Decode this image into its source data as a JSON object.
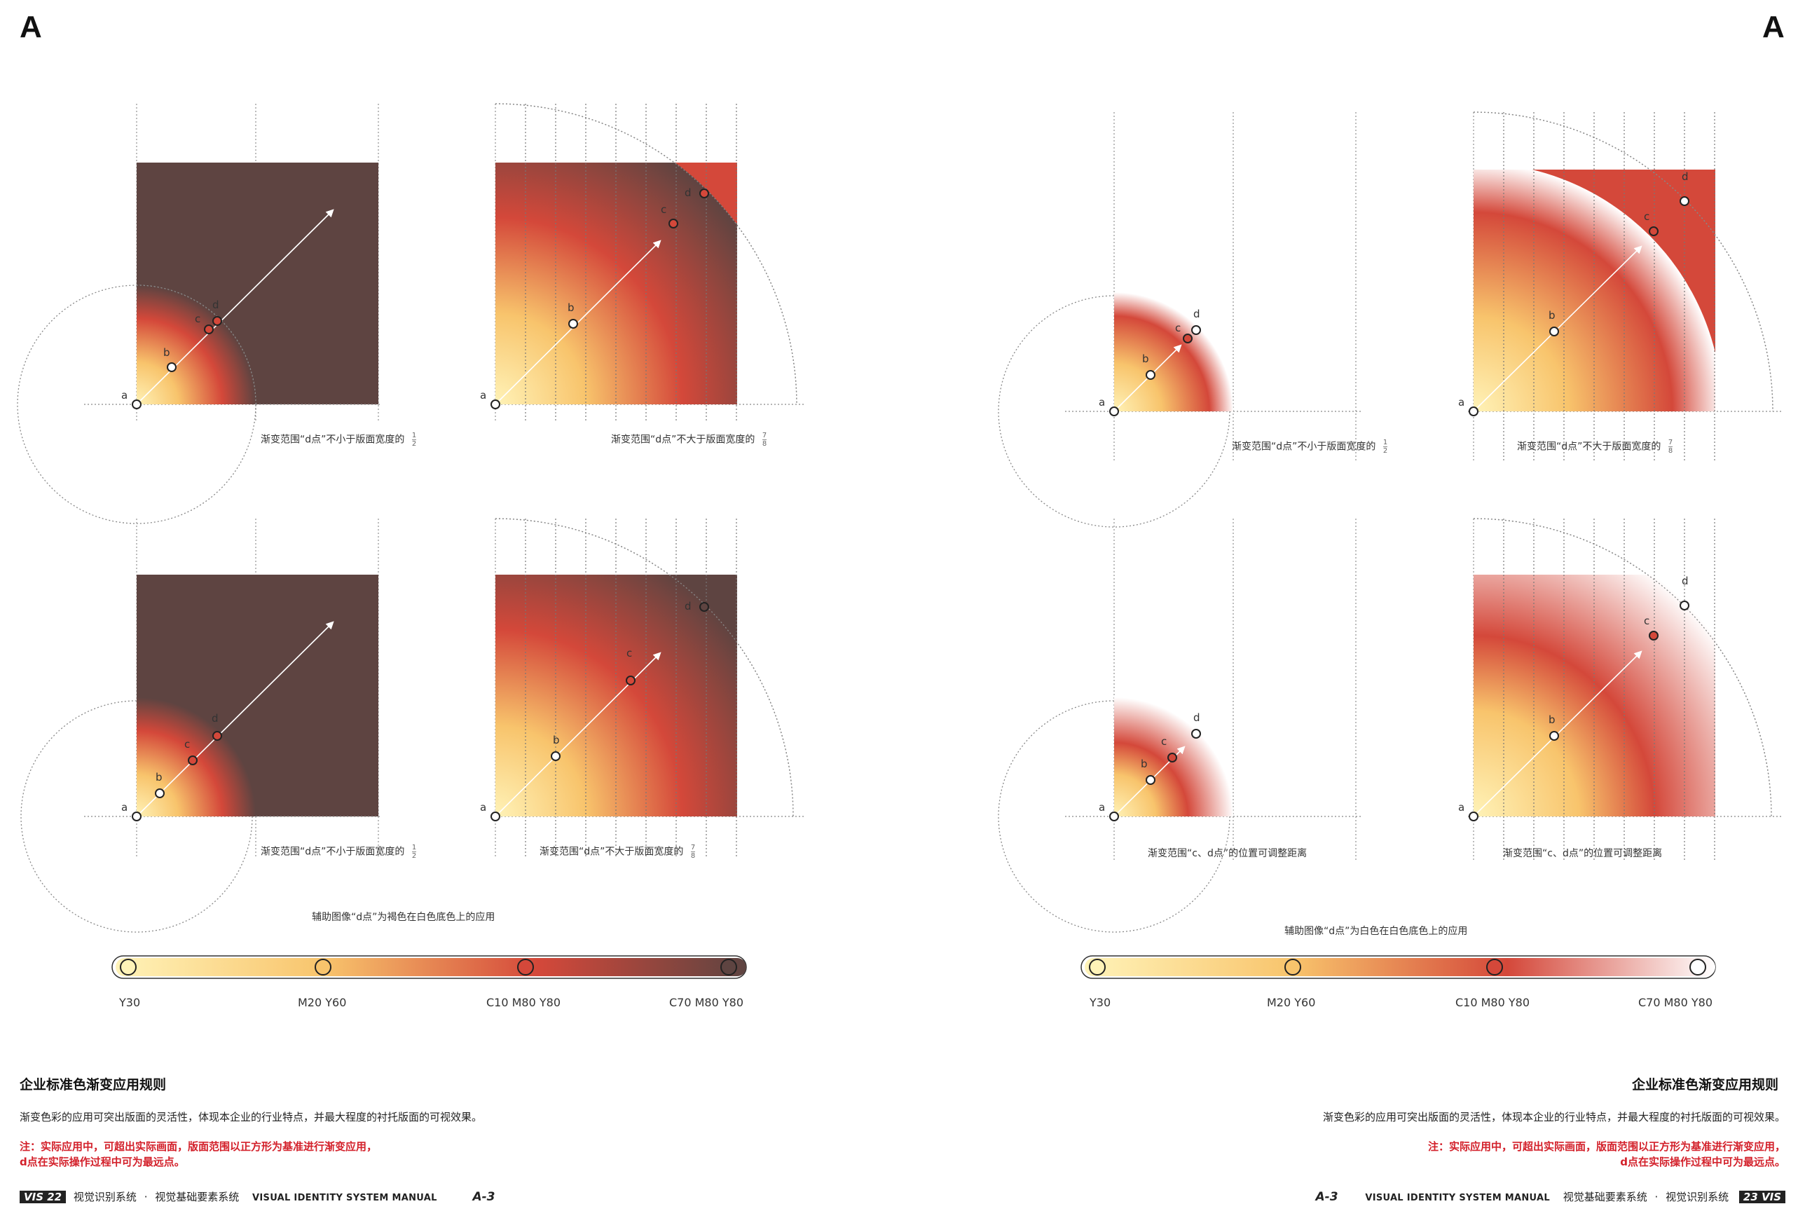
{
  "page_letters": {
    "left": "A",
    "right": "A"
  },
  "left_page": {
    "caption_main": "辅助图像“d点”为褐色在白色底色上的应用",
    "panels": [
      {
        "caption": "渐变范围“d点”不小于版面宽度的",
        "frac_num": "1",
        "frac_den": "2"
      },
      {
        "caption": "渐变范围“d点”不大于版面宽度的",
        "frac_num": "7",
        "frac_den": "8"
      },
      {
        "caption": "渐变范围“d点”不小于版面宽度的",
        "frac_num": "1",
        "frac_den": "2"
      },
      {
        "caption": "渐变范围“d点”不大于版面宽度的",
        "frac_num": "7",
        "frac_den": "8"
      }
    ],
    "ticks": [
      "Y30",
      "M20 Y60",
      "C10 M80 Y80",
      "C70 M80 Y80"
    ],
    "title": "企业标准色渐变应用规则",
    "body": "渐变色彩的应用可突出版面的灵活性，体现本企业的行业特点，并最大程度的衬托版面的可视效果。",
    "note_line1": "注：实际应用中，可超出实际画面，版面范围以正方形为基准进行渐变应用，",
    "note_line2": "d点在实际操作过程中可为最远点。",
    "footer": {
      "vis": "VIS",
      "page_no": "22",
      "cn1": "视觉识别系统",
      "dot": "·",
      "cn2": "视觉基础要素系统",
      "en": "VISUAL IDENTITY SYSTEM MANUAL",
      "code": "A-3"
    }
  },
  "right_page": {
    "caption_main": "辅助图像“d点”为白色在白色底色上的应用",
    "panels": [
      {
        "caption": "渐变范围“d点”不小于版面宽度的",
        "frac_num": "1",
        "frac_den": "2"
      },
      {
        "caption": "渐变范围“d点”不大于版面宽度的",
        "frac_num": "7",
        "frac_den": "8"
      },
      {
        "caption": "渐变范围“c、d点”的位置可调整距离"
      },
      {
        "caption": "渐变范围“c、d点”的位置可调整距离"
      }
    ],
    "ticks": [
      "Y30",
      "M20 Y60",
      "C10 M80 Y80",
      "C70 M80 Y80"
    ],
    "title": "企业标准色渐变应用规则",
    "body": "渐变色彩的应用可突出版面的灵活性，体现本企业的行业特点，并最大程度的衬托版面的可视效果。",
    "note_line1": "注：实际应用中，可超出实际画面，版面范围以正方形为基准进行渐变应用，",
    "note_line2": "d点在实际操作过程中可为最远点。",
    "footer": {
      "code": "A-3",
      "en": "VISUAL IDENTITY SYSTEM MANUAL",
      "cn2": "视觉基础要素系统",
      "dot": "·",
      "cn1": "视觉识别系统",
      "page_no": "23",
      "vis": "VIS"
    }
  },
  "point_labels": {
    "a": "a",
    "b": "b",
    "c": "c",
    "d": "d"
  },
  "colors": {
    "y30": "#fff3b8",
    "m20y60": "#f8c46c",
    "c10m80y80": "#d4483a",
    "c70m80y80": "#5e4441",
    "note_red": "#d3202a"
  }
}
